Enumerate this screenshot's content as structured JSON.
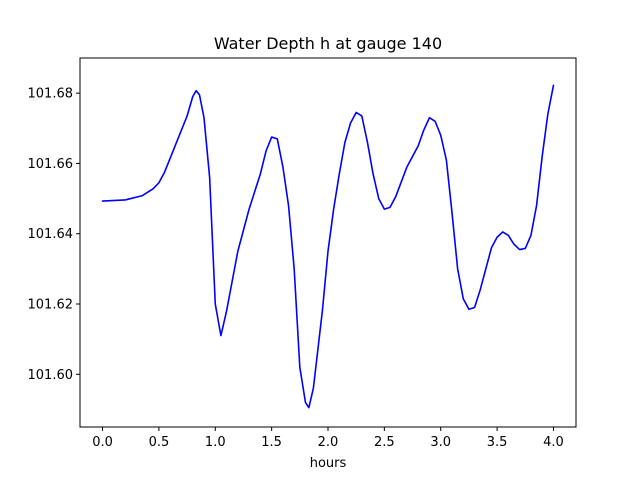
{
  "chart_data": {
    "type": "line",
    "title": "Water Depth h at gauge 140",
    "xlabel": "hours",
    "ylabel": "",
    "xlim": [
      -0.2,
      4.2
    ],
    "ylim": [
      101.585,
      101.69
    ],
    "xticks": [
      0.0,
      0.5,
      1.0,
      1.5,
      2.0,
      2.5,
      3.0,
      3.5,
      4.0
    ],
    "xtick_labels": [
      "0.0",
      "0.5",
      "1.0",
      "1.5",
      "2.0",
      "2.5",
      "3.0",
      "3.5",
      "4.0"
    ],
    "yticks": [
      101.6,
      101.62,
      101.64,
      101.66,
      101.68
    ],
    "ytick_labels": [
      "101.60",
      "101.62",
      "101.64",
      "101.66",
      "101.68"
    ],
    "grid": false,
    "series": [
      {
        "color": "#0000ff",
        "x": [
          0.0,
          0.2,
          0.35,
          0.45,
          0.5,
          0.55,
          0.6,
          0.7,
          0.75,
          0.8,
          0.83,
          0.86,
          0.9,
          0.95,
          1.0,
          1.05,
          1.1,
          1.2,
          1.3,
          1.4,
          1.45,
          1.5,
          1.55,
          1.6,
          1.65,
          1.7,
          1.75,
          1.8,
          1.83,
          1.87,
          1.95,
          2.0,
          2.05,
          2.1,
          2.15,
          2.2,
          2.25,
          2.3,
          2.35,
          2.4,
          2.45,
          2.5,
          2.55,
          2.6,
          2.7,
          2.8,
          2.85,
          2.9,
          2.95,
          3.0,
          3.05,
          3.1,
          3.15,
          3.2,
          3.25,
          3.3,
          3.35,
          3.45,
          3.5,
          3.55,
          3.6,
          3.65,
          3.7,
          3.75,
          3.8,
          3.85,
          3.9,
          3.95,
          4.0
        ],
        "y": [
          101.6493,
          101.6496,
          101.6508,
          101.6528,
          101.6545,
          101.6575,
          101.6615,
          101.6695,
          101.6735,
          101.679,
          101.6807,
          101.6795,
          101.673,
          101.656,
          101.62,
          101.611,
          101.618,
          101.635,
          101.647,
          101.657,
          101.6635,
          101.6675,
          101.667,
          101.659,
          101.648,
          101.63,
          101.602,
          101.592,
          101.5905,
          101.596,
          101.618,
          101.635,
          101.647,
          101.657,
          101.666,
          101.6715,
          101.6745,
          101.6735,
          101.666,
          101.657,
          101.65,
          101.647,
          101.6475,
          101.6505,
          101.659,
          101.665,
          101.6695,
          101.673,
          101.672,
          101.668,
          101.661,
          101.646,
          101.63,
          101.6215,
          101.6185,
          101.619,
          101.624,
          101.636,
          101.639,
          101.6405,
          101.6395,
          101.637,
          101.6355,
          101.6358,
          101.6395,
          101.648,
          101.662,
          101.674,
          101.6822
        ]
      }
    ]
  }
}
